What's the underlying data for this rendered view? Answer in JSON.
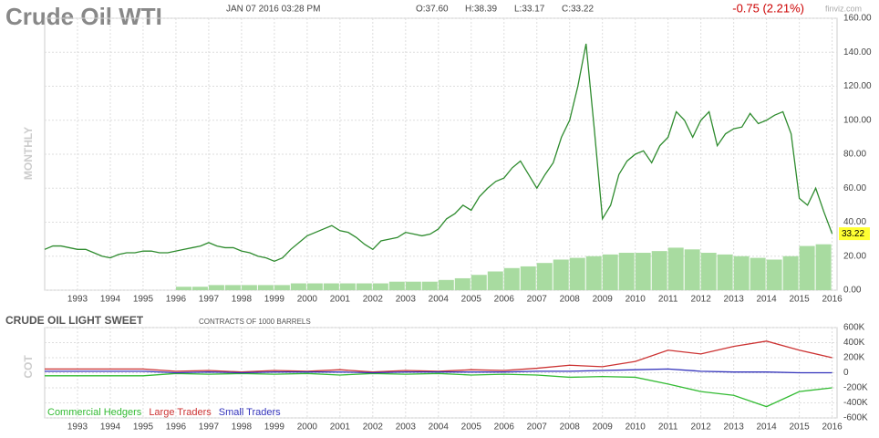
{
  "header": {
    "title": "Crude Oil WTI",
    "date": "JAN 07 2016 03:28 PM",
    "open": "O:37.60",
    "high": "H:38.39",
    "low": "L:33.17",
    "close": "C:33.22",
    "change": "-0.75 (2.21%)",
    "source": "finviz.com"
  },
  "chart_data": [
    {
      "type": "line",
      "panel_label": "MONTHLY",
      "x": [
        1992,
        1992.25,
        1992.5,
        1992.75,
        1993,
        1993.25,
        1993.5,
        1993.75,
        1994,
        1994.25,
        1994.5,
        1994.75,
        1995,
        1995.25,
        1995.5,
        1995.75,
        1996,
        1996.25,
        1996.5,
        1996.75,
        1997,
        1997.25,
        1997.5,
        1997.75,
        1998,
        1998.25,
        1998.5,
        1998.75,
        1999,
        1999.25,
        1999.5,
        1999.75,
        2000,
        2000.25,
        2000.5,
        2000.75,
        2001,
        2001.25,
        2001.5,
        2001.75,
        2002,
        2002.25,
        2002.5,
        2002.75,
        2003,
        2003.25,
        2003.5,
        2003.75,
        2004,
        2004.25,
        2004.5,
        2004.75,
        2005,
        2005.25,
        2005.5,
        2005.75,
        2006,
        2006.25,
        2006.5,
        2006.75,
        2007,
        2007.25,
        2007.5,
        2007.75,
        2008,
        2008.25,
        2008.5,
        2008.75,
        2009,
        2009.25,
        2009.5,
        2009.75,
        2010,
        2010.25,
        2010.5,
        2010.75,
        2011,
        2011.25,
        2011.5,
        2011.75,
        2012,
        2012.25,
        2012.5,
        2012.75,
        2013,
        2013.25,
        2013.5,
        2013.75,
        2014,
        2014.25,
        2014.5,
        2014.75,
        2015,
        2015.25,
        2015.5,
        2015.75,
        2016
      ],
      "series": [
        {
          "color": "#2e8b2e",
          "values": [
            24,
            26,
            26,
            25,
            24,
            24,
            22,
            20,
            19,
            21,
            22,
            22,
            23,
            23,
            22,
            22,
            23,
            24,
            25,
            26,
            28,
            26,
            25,
            25,
            23,
            22,
            20,
            19,
            17,
            19,
            24,
            28,
            32,
            34,
            36,
            38,
            35,
            34,
            31,
            27,
            24,
            29,
            30,
            31,
            34,
            33,
            32,
            33,
            36,
            42,
            45,
            50,
            47,
            55,
            60,
            64,
            66,
            72,
            76,
            68,
            60,
            68,
            75,
            90,
            100,
            120,
            145,
            95,
            42,
            50,
            68,
            76,
            80,
            82,
            75,
            85,
            90,
            105,
            100,
            90,
            100,
            105,
            85,
            92,
            95,
            96,
            104,
            98,
            100,
            103,
            105,
            92,
            54,
            50,
            60,
            46,
            33.22
          ]
        }
      ],
      "volume": {
        "color": "#a8dba0",
        "x": [
          1996,
          1996.5,
          1997,
          1997.5,
          1998,
          1998.5,
          1999,
          1999.5,
          2000,
          2000.5,
          2001,
          2001.5,
          2002,
          2002.5,
          2003,
          2003.5,
          2004,
          2004.5,
          2005,
          2005.5,
          2006,
          2006.5,
          2007,
          2007.5,
          2008,
          2008.5,
          2009,
          2009.5,
          2010,
          2010.5,
          2011,
          2011.5,
          2012,
          2012.5,
          2013,
          2013.5,
          2014,
          2014.5,
          2015,
          2015.5
        ],
        "values": [
          2,
          2,
          3,
          3,
          3,
          3,
          3,
          4,
          4,
          4,
          4,
          4,
          4,
          5,
          5,
          5,
          6,
          7,
          9,
          11,
          13,
          14,
          16,
          18,
          19,
          20,
          21,
          22,
          22,
          23,
          25,
          24,
          22,
          21,
          20,
          19,
          18,
          20,
          26,
          27
        ]
      },
      "xlim": [
        1992,
        2016.15
      ],
      "ylim": [
        0,
        160
      ],
      "xticks": [
        1993,
        1994,
        1995,
        1996,
        1997,
        1998,
        1999,
        2000,
        2001,
        2002,
        2003,
        2004,
        2005,
        2006,
        2007,
        2008,
        2009,
        2010,
        2011,
        2012,
        2013,
        2014,
        2015,
        2016
      ],
      "yticks": [
        {
          "value": 0,
          "label": "0.00"
        },
        {
          "value": 20,
          "label": "20.00"
        },
        {
          "value": 40,
          "label": "40.00"
        },
        {
          "value": 60,
          "label": "60.00"
        },
        {
          "value": 80,
          "label": "80.00"
        },
        {
          "value": 100,
          "label": "100.00"
        },
        {
          "value": 120,
          "label": "120.00"
        },
        {
          "value": 140,
          "label": "140.00"
        },
        {
          "value": 160,
          "label": "160.00"
        }
      ],
      "grid": true
    },
    {
      "type": "line",
      "title": "CRUDE OIL LIGHT SWEET",
      "subtitle": "CONTRACTS OF 1000 BARRELS",
      "panel_label": "COT",
      "x": [
        1992,
        1993,
        1994,
        1995,
        1996,
        1997,
        1998,
        1999,
        2000,
        2001,
        2002,
        2003,
        2004,
        2005,
        2006,
        2007,
        2008,
        2009,
        2010,
        2011,
        2012,
        2013,
        2014,
        2015,
        2016
      ],
      "series": [
        {
          "name": "Commercial Hedgers",
          "color": "#33bb33",
          "values": [
            -40000,
            -40000,
            -40000,
            -40000,
            -10000,
            -20000,
            -10000,
            -20000,
            -10000,
            -30000,
            -10000,
            -20000,
            -10000,
            -30000,
            -20000,
            -30000,
            -60000,
            -50000,
            -60000,
            -150000,
            -250000,
            -300000,
            -450000,
            -250000,
            -200000
          ]
        },
        {
          "name": "Large Traders",
          "color": "#cc3333",
          "values": [
            50000,
            50000,
            50000,
            50000,
            20000,
            30000,
            10000,
            30000,
            20000,
            40000,
            10000,
            30000,
            20000,
            40000,
            30000,
            60000,
            100000,
            80000,
            150000,
            300000,
            250000,
            350000,
            420000,
            300000,
            200000
          ]
        },
        {
          "name": "Small Traders",
          "color": "#3333bb",
          "values": [
            20000,
            20000,
            20000,
            20000,
            0,
            10000,
            0,
            10000,
            10000,
            10000,
            0,
            10000,
            10000,
            10000,
            10000,
            20000,
            20000,
            30000,
            40000,
            50000,
            20000,
            10000,
            10000,
            0,
            0
          ]
        }
      ],
      "xlim": [
        1992,
        2016.15
      ],
      "ylim": [
        -600000,
        600000
      ],
      "xticks": [
        1993,
        1994,
        1995,
        1996,
        1997,
        1998,
        1999,
        2000,
        2001,
        2002,
        2003,
        2004,
        2005,
        2006,
        2007,
        2008,
        2009,
        2010,
        2011,
        2012,
        2013,
        2014,
        2015,
        2016
      ],
      "yticks": [
        {
          "value": -600000,
          "label": "-600K"
        },
        {
          "value": -400000,
          "label": "-400K"
        },
        {
          "value": -200000,
          "label": "-200K"
        },
        {
          "value": 0,
          "label": "0"
        },
        {
          "value": 200000,
          "label": "200K"
        },
        {
          "value": 400000,
          "label": "400K"
        },
        {
          "value": 600000,
          "label": "600K"
        }
      ],
      "grid": true,
      "legend": "bottom-left"
    }
  ]
}
